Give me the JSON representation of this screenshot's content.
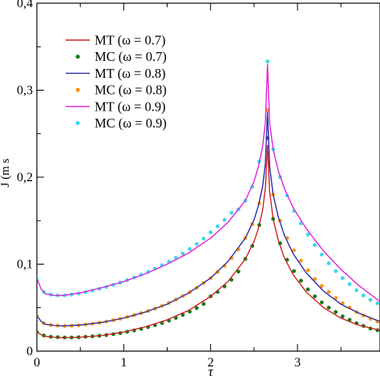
{
  "chart_data": {
    "type": "line",
    "xlabel": "τ",
    "ylabel": "J (m s",
    "xlim": [
      0,
      3.95
    ],
    "ylim": [
      0,
      0.4
    ],
    "x_ticks": [
      {
        "value": 0,
        "label": "0"
      },
      {
        "value": 1,
        "label": "1"
      },
      {
        "value": 2,
        "label": "2"
      },
      {
        "value": 3,
        "label": "3"
      }
    ],
    "y_ticks": [
      {
        "value": 0,
        "label": "0"
      },
      {
        "value": 0.1,
        "label": "0,1"
      },
      {
        "value": 0.2,
        "label": "0,2"
      },
      {
        "value": 0.3,
        "label": "0,3"
      },
      {
        "value": 0.4,
        "label": "0,4"
      }
    ],
    "legend_position": "top-left",
    "grid": false,
    "series": [
      {
        "name": "MT (ω = 0.7)",
        "kind": "line",
        "color": "#d42020",
        "x": [
          0,
          0.05,
          0.1,
          0.2,
          0.3,
          0.5,
          0.75,
          1.0,
          1.25,
          1.5,
          1.75,
          2.0,
          2.2,
          2.4,
          2.5,
          2.55,
          2.6,
          2.63,
          2.655,
          2.68,
          2.72,
          2.78,
          2.85,
          2.95,
          3.1,
          3.3,
          3.5,
          3.7,
          3.95
        ],
        "y": [
          0.022,
          0.019,
          0.017,
          0.016,
          0.0155,
          0.016,
          0.018,
          0.022,
          0.028,
          0.036,
          0.047,
          0.063,
          0.08,
          0.106,
          0.126,
          0.141,
          0.163,
          0.187,
          0.237,
          0.183,
          0.152,
          0.127,
          0.107,
          0.088,
          0.068,
          0.05,
          0.038,
          0.03,
          0.024
        ]
      },
      {
        "name": "MC (ω = 0.7)",
        "kind": "markers",
        "color": "#157a15",
        "x": [
          0.0,
          0.08,
          0.16,
          0.24,
          0.32,
          0.4,
          0.48,
          0.56,
          0.64,
          0.72,
          0.8,
          0.88,
          0.96,
          1.04,
          1.12,
          1.2,
          1.28,
          1.36,
          1.44,
          1.52,
          1.6,
          1.68,
          1.76,
          1.84,
          1.92,
          2.0,
          2.08,
          2.16,
          2.24,
          2.32,
          2.4,
          2.48,
          2.56,
          2.655,
          2.72,
          2.8,
          2.88,
          2.96,
          3.04,
          3.12,
          3.2,
          3.28,
          3.36,
          3.44,
          3.52,
          3.6,
          3.68,
          3.76,
          3.84,
          3.92
        ],
        "y": [
          0.022,
          0.018,
          0.0165,
          0.016,
          0.0157,
          0.0157,
          0.016,
          0.0165,
          0.017,
          0.0177,
          0.0185,
          0.0195,
          0.0207,
          0.0222,
          0.0238,
          0.0256,
          0.0276,
          0.0298,
          0.0323,
          0.0351,
          0.0382,
          0.0416,
          0.0453,
          0.0495,
          0.0542,
          0.063,
          0.068,
          0.0745,
          0.082,
          0.0915,
          0.106,
          0.121,
          0.145,
          0.245,
          0.152,
          0.124,
          0.105,
          0.092,
          0.081,
          0.071,
          0.063,
          0.056,
          0.05,
          0.045,
          0.04,
          0.036,
          0.032,
          0.029,
          0.026,
          0.024
        ]
      },
      {
        "name": "MT (ω = 0.8)",
        "kind": "line",
        "color": "#2a2aa8",
        "x": [
          0,
          0.05,
          0.1,
          0.2,
          0.3,
          0.5,
          0.75,
          1.0,
          1.25,
          1.5,
          1.75,
          2.0,
          2.2,
          2.4,
          2.5,
          2.55,
          2.6,
          2.63,
          2.655,
          2.68,
          2.72,
          2.78,
          2.85,
          2.95,
          3.1,
          3.3,
          3.5,
          3.7,
          3.95
        ],
        "y": [
          0.041,
          0.034,
          0.031,
          0.0295,
          0.029,
          0.03,
          0.033,
          0.038,
          0.045,
          0.054,
          0.067,
          0.084,
          0.103,
          0.13,
          0.151,
          0.167,
          0.19,
          0.215,
          0.275,
          0.212,
          0.18,
          0.154,
          0.133,
          0.112,
          0.09,
          0.069,
          0.054,
          0.044,
          0.034
        ]
      },
      {
        "name": "MC (ω = 0.8)",
        "kind": "markers",
        "color": "#ff9410",
        "x": [
          0.0,
          0.08,
          0.16,
          0.24,
          0.32,
          0.4,
          0.48,
          0.56,
          0.64,
          0.72,
          0.8,
          0.88,
          0.96,
          1.04,
          1.12,
          1.2,
          1.28,
          1.36,
          1.44,
          1.52,
          1.6,
          1.68,
          1.76,
          1.84,
          1.92,
          2.0,
          2.08,
          2.16,
          2.24,
          2.32,
          2.4,
          2.48,
          2.56,
          2.655,
          2.72,
          2.8,
          2.88,
          2.96,
          3.04,
          3.12,
          3.2,
          3.28,
          3.36,
          3.44,
          3.52,
          3.6,
          3.68,
          3.76,
          3.84,
          3.92
        ],
        "y": [
          0.041,
          0.032,
          0.03,
          0.0293,
          0.029,
          0.0292,
          0.0297,
          0.0305,
          0.0315,
          0.0327,
          0.034,
          0.0356,
          0.0373,
          0.0393,
          0.0414,
          0.0437,
          0.0462,
          0.049,
          0.0521,
          0.0555,
          0.0592,
          0.0633,
          0.0678,
          0.0728,
          0.0783,
          0.084,
          0.091,
          0.098,
          0.107,
          0.117,
          0.13,
          0.146,
          0.17,
          0.277,
          0.18,
          0.15,
          0.13,
          0.116,
          0.104,
          0.093,
          0.083,
          0.075,
          0.068,
          0.061,
          0.055,
          0.05,
          0.045,
          0.041,
          0.037,
          0.034
        ]
      },
      {
        "name": "MT (ω = 0.9)",
        "kind": "line",
        "color": "#e020d8",
        "x": [
          0,
          0.05,
          0.1,
          0.2,
          0.3,
          0.5,
          0.75,
          1.0,
          1.25,
          1.5,
          1.75,
          2.0,
          2.2,
          2.4,
          2.5,
          2.55,
          2.6,
          2.63,
          2.655,
          2.68,
          2.72,
          2.78,
          2.85,
          2.95,
          3.1,
          3.3,
          3.5,
          3.7,
          3.95
        ],
        "y": [
          0.084,
          0.071,
          0.066,
          0.064,
          0.064,
          0.067,
          0.073,
          0.08,
          0.089,
          0.1,
          0.113,
          0.13,
          0.148,
          0.173,
          0.195,
          0.212,
          0.236,
          0.262,
          0.33,
          0.262,
          0.232,
          0.207,
          0.187,
          0.165,
          0.141,
          0.115,
          0.094,
          0.076,
          0.057
        ]
      },
      {
        "name": "MC (ω = 0.9)",
        "kind": "markers",
        "color": "#3fd5ee",
        "x": [
          0.0,
          0.08,
          0.16,
          0.24,
          0.32,
          0.4,
          0.48,
          0.56,
          0.64,
          0.72,
          0.8,
          0.88,
          0.96,
          1.04,
          1.12,
          1.2,
          1.28,
          1.36,
          1.44,
          1.52,
          1.6,
          1.68,
          1.76,
          1.84,
          1.92,
          2.0,
          2.08,
          2.16,
          2.24,
          2.32,
          2.4,
          2.48,
          2.56,
          2.655,
          2.72,
          2.8,
          2.88,
          2.96,
          3.04,
          3.12,
          3.2,
          3.28,
          3.36,
          3.44,
          3.52,
          3.6,
          3.68,
          3.76,
          3.84,
          3.92
        ],
        "y": [
          0.084,
          0.068,
          0.065,
          0.0642,
          0.0642,
          0.065,
          0.0662,
          0.0678,
          0.0696,
          0.0716,
          0.0738,
          0.0762,
          0.0788,
          0.0816,
          0.0846,
          0.0878,
          0.0912,
          0.0948,
          0.0987,
          0.1029,
          0.1074,
          0.1122,
          0.1175,
          0.1232,
          0.1294,
          0.1365,
          0.1435,
          0.151,
          0.159,
          0.163,
          0.173,
          0.189,
          0.218,
          0.333,
          0.232,
          0.2,
          0.179,
          0.161,
          0.147,
          0.134,
          0.122,
          0.111,
          0.101,
          0.092,
          0.084,
          0.077,
          0.07,
          0.064,
          0.059,
          0.055
        ]
      }
    ]
  }
}
